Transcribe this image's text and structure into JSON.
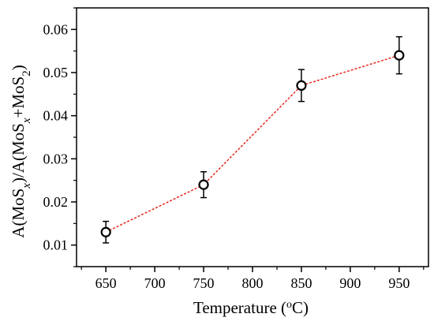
{
  "chart_data": {
    "type": "line",
    "title": "",
    "xlabel": "Temperature (oC)",
    "xlabel_parts": {
      "main": "Temperature (",
      "sup": "o",
      "tail": "C)"
    },
    "ylabel": "A(MoSx)/A(MoSx+MoS2)",
    "ylabel_parts": {
      "a": "A(MoS",
      "b": "x",
      "c": ")/A(MoS",
      "d": "x",
      "e": "+MoS",
      "f": "2",
      "g": ")"
    },
    "xlim": [
      620,
      980
    ],
    "ylim": [
      0.005,
      0.065
    ],
    "xticks": [
      650,
      700,
      750,
      800,
      850,
      900,
      950
    ],
    "xtick_labels": [
      "650",
      "700",
      "750",
      "800",
      "850",
      "900",
      "950"
    ],
    "yticks": [
      0.01,
      0.02,
      0.03,
      0.04,
      0.05,
      0.06
    ],
    "ytick_labels": [
      "0.01",
      "0.02",
      "0.03",
      "0.04",
      "0.05",
      "0.06"
    ],
    "x": [
      650,
      750,
      850,
      950
    ],
    "y": [
      0.013,
      0.024,
      0.047,
      0.054
    ],
    "yerr": [
      0.0025,
      0.003,
      0.0037,
      0.0043
    ],
    "line_color": "#e8281e",
    "line_style": "dashed",
    "marker": "open-circle",
    "marker_color": "#000000",
    "grid": false,
    "legend": "none"
  }
}
